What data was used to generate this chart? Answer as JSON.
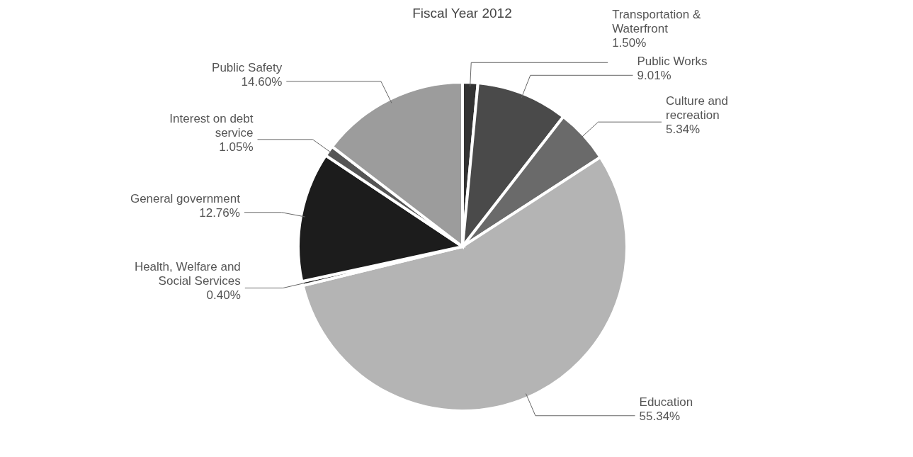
{
  "chart_data": {
    "type": "pie",
    "title": "Fiscal Year 2012",
    "categories": [
      "Transportation & Waterfront",
      "Public Works",
      "Culture and recreation",
      "Education",
      "Health, Welfare and Social Services",
      "General government",
      "Interest on debt service",
      "Public Safety"
    ],
    "values": [
      1.5,
      9.01,
      5.34,
      55.34,
      0.4,
      12.76,
      1.05,
      14.6
    ],
    "value_labels": [
      "1.50%",
      "9.01%",
      "5.34%",
      "55.34%",
      "0.40%",
      "12.76%",
      "1.05%",
      "14.60%"
    ],
    "colors": [
      "#333333",
      "#4a4a4a",
      "#6a6a6a",
      "#b4b4b4",
      "#222222",
      "#1c1c1c",
      "#555555",
      "#9c9c9c"
    ]
  }
}
